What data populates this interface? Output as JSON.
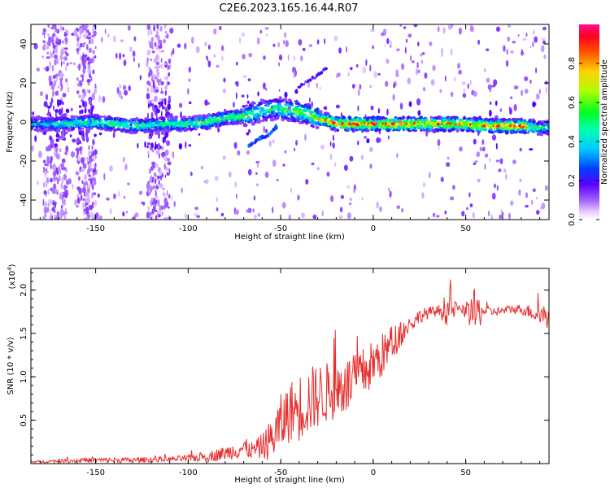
{
  "figure_title": "C2E6.2023.165.16.44.R07",
  "chart_data": [
    {
      "type": "heatmap",
      "title": "C2E6.2023.165.16.44.R07",
      "xlabel": "Height of straight line (km)",
      "ylabel": "Frequency (Hz)",
      "xlim": [
        -185,
        95
      ],
      "ylim": [
        -50,
        50
      ],
      "xticks": [
        -150,
        -100,
        -50,
        0,
        50
      ],
      "yticks": [
        -40,
        -20,
        0,
        20,
        40
      ],
      "xtick_labels": [
        "-150",
        "-100",
        "-50",
        "0",
        "50"
      ],
      "ytick_labels": [
        "-40",
        "-20",
        "0",
        "20",
        "40"
      ],
      "colorbar": {
        "label": "Normalized spectral amplitude",
        "range": [
          0,
          1
        ],
        "ticks": [
          "0.0",
          "0.2",
          "0.4",
          "0.6",
          "0.8"
        ],
        "tick_values": [
          0.0,
          0.2,
          0.4,
          0.6,
          0.8
        ]
      },
      "ridge": {
        "x": [
          -185,
          -170,
          -150,
          -130,
          -110,
          -100,
          -90,
          -80,
          -70,
          -60,
          -52,
          -45,
          -40,
          -35,
          -30,
          -25,
          -20,
          -10,
          0,
          10,
          20,
          30,
          40,
          50,
          60,
          70,
          80,
          90,
          95
        ],
        "freq": [
          -1,
          -1,
          0,
          -2,
          -1,
          -1,
          0,
          2,
          3,
          6,
          7,
          6,
          5,
          4,
          2,
          1,
          -1,
          -1,
          -1,
          -1,
          -1,
          -1,
          -1,
          -1,
          -2,
          -2,
          -2,
          -3,
          -3
        ],
        "amplitude": [
          0.4,
          0.45,
          0.55,
          0.55,
          0.5,
          0.55,
          0.6,
          0.6,
          0.6,
          0.5,
          0.5,
          0.55,
          0.6,
          0.65,
          0.7,
          0.8,
          0.85,
          0.9,
          0.9,
          0.9,
          0.85,
          0.85,
          0.85,
          0.8,
          0.85,
          0.85,
          0.9,
          0.5,
          0.5
        ]
      },
      "secondary_feature": {
        "x": [
          -67,
          -62,
          -58,
          -55,
          -52
        ],
        "freq": [
          -12,
          -9,
          -7,
          -5,
          -3
        ]
      },
      "diagonal_feature": {
        "x": [
          -40,
          -35,
          -30,
          -25
        ],
        "freq": [
          18,
          21,
          24,
          28
        ]
      }
    },
    {
      "type": "line",
      "title": "",
      "xlabel": "Height of straight line (km)",
      "ylabel": "SNR (10 * v/v)",
      "multiplier_label": "(x10",
      "multiplier_exponent": "4",
      "multiplier_close": ")",
      "xlim": [
        -185,
        95
      ],
      "ylim": [
        0,
        2.25
      ],
      "xticks": [
        -150,
        -100,
        -50,
        0,
        50
      ],
      "yticks": [
        0.5,
        1.0,
        1.5,
        2.0
      ],
      "xtick_labels": [
        "-150",
        "-100",
        "-50",
        "0",
        "50"
      ],
      "ytick_labels": [
        "0.5",
        "1.0",
        "1.5",
        "2.0"
      ],
      "series": [
        {
          "name": "SNR",
          "color": "#e83030",
          "x": [
            -185,
            -170,
            -150,
            -130,
            -110,
            -100,
            -90,
            -80,
            -75,
            -70,
            -65,
            -60,
            -55,
            -50,
            -45,
            -40,
            -35,
            -30,
            -25,
            -20,
            -15,
            -10,
            -5,
            0,
            5,
            10,
            15,
            20,
            25,
            30,
            35,
            40,
            45,
            50,
            55,
            60,
            65,
            70,
            75,
            80,
            85,
            90,
            95
          ],
          "mean": [
            0.02,
            0.03,
            0.04,
            0.04,
            0.05,
            0.06,
            0.08,
            0.12,
            0.15,
            0.18,
            0.15,
            0.2,
            0.28,
            0.45,
            0.6,
            0.65,
            0.72,
            0.78,
            0.82,
            0.85,
            0.9,
            0.95,
            1.05,
            1.15,
            1.25,
            1.38,
            1.5,
            1.6,
            1.7,
            1.74,
            1.76,
            1.78,
            1.78,
            1.75,
            1.72,
            1.76,
            1.75,
            1.76,
            1.78,
            1.78,
            1.75,
            1.72,
            1.7
          ],
          "noise": [
            0.01,
            0.02,
            0.03,
            0.03,
            0.03,
            0.04,
            0.06,
            0.08,
            0.1,
            0.12,
            0.1,
            0.15,
            0.25,
            0.35,
            0.35,
            0.4,
            0.4,
            0.38,
            0.35,
            0.35,
            0.35,
            0.3,
            0.3,
            0.28,
            0.26,
            0.22,
            0.15,
            0.1,
            0.08,
            0.07,
            0.06,
            0.2,
            0.08,
            0.06,
            0.3,
            0.06,
            0.05,
            0.05,
            0.05,
            0.06,
            0.08,
            0.15,
            0.15
          ]
        }
      ]
    }
  ]
}
